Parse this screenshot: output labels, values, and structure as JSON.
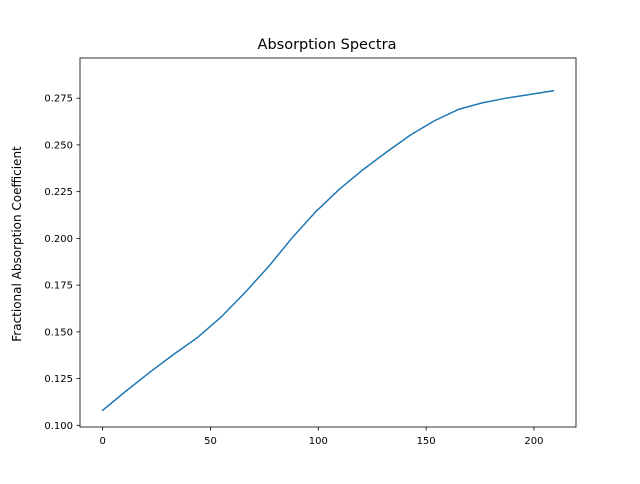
{
  "chart_data": {
    "type": "line",
    "title": "Absorption Spectra",
    "xlabel": "",
    "ylabel": "Fractional Absorption Coefficient",
    "xlim": [
      -10.5,
      219.5
    ],
    "ylim": [
      0.0991,
      0.2965
    ],
    "xticks": [
      0,
      50,
      100,
      150,
      200
    ],
    "xtick_labels": [
      "0",
      "50",
      "100",
      "150",
      "200"
    ],
    "yticks": [
      0.1,
      0.125,
      0.15,
      0.175,
      0.2,
      0.225,
      0.25,
      0.275
    ],
    "ytick_labels": [
      "0.100",
      "0.125",
      "0.150",
      "0.175",
      "0.200",
      "0.225",
      "0.250",
      "0.275"
    ],
    "grid": false,
    "series": [
      {
        "color": "#1f77b4",
        "x": [
          0,
          11,
          22,
          33,
          44,
          55,
          66,
          77,
          88,
          99,
          110,
          121,
          132,
          143,
          154,
          165,
          176,
          187,
          198,
          209
        ],
        "y": [
          0.108,
          0.1185,
          0.1285,
          0.138,
          0.147,
          0.158,
          0.171,
          0.185,
          0.2005,
          0.2145,
          0.2265,
          0.237,
          0.2465,
          0.2555,
          0.263,
          0.269,
          0.2725,
          0.275,
          0.277,
          0.279
        ]
      }
    ]
  }
}
